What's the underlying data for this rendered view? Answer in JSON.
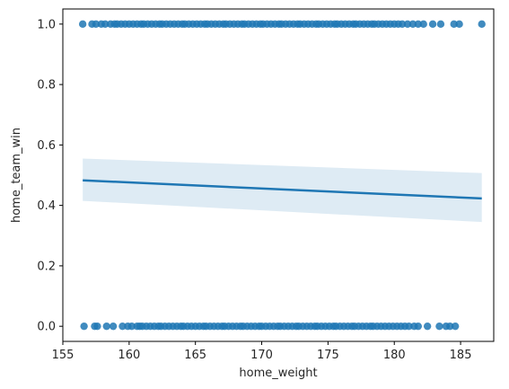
{
  "chart_data": {
    "type": "scatter",
    "title": "",
    "xlabel": "home_weight",
    "ylabel": "home_team_win",
    "xlim": [
      155,
      187.5
    ],
    "ylim": [
      -0.05,
      1.05
    ],
    "xticks": [
      155,
      160,
      165,
      170,
      175,
      180,
      185
    ],
    "yticks": [
      0.0,
      0.2,
      0.4,
      0.6,
      0.8,
      1.0
    ],
    "xtick_labels": [
      "155",
      "160",
      "165",
      "170",
      "175",
      "180",
      "185"
    ],
    "ytick_labels": [
      "0.0",
      "0.2",
      "0.4",
      "0.6",
      "0.8",
      "1.0"
    ],
    "grid": false,
    "point_color": "#1f77b4",
    "points_y1": [
      156.5,
      157.2,
      157.5,
      157.9,
      158.2,
      158.6,
      158.9,
      159.1,
      159.4,
      159.7,
      160.0,
      160.3,
      160.6,
      160.9,
      161.1,
      161.4,
      161.7,
      162.0,
      162.3,
      162.5,
      162.8,
      163.1,
      163.4,
      163.7,
      164.0,
      164.2,
      164.5,
      164.8,
      165.1,
      165.4,
      165.7,
      165.9,
      166.2,
      166.5,
      166.8,
      167.1,
      167.3,
      167.6,
      167.9,
      168.2,
      168.5,
      168.7,
      169.0,
      169.3,
      169.6,
      169.9,
      170.1,
      170.4,
      170.7,
      171.0,
      171.3,
      171.5,
      171.8,
      172.1,
      172.4,
      172.7,
      172.9,
      173.2,
      173.5,
      173.8,
      174.1,
      174.3,
      174.6,
      174.9,
      175.2,
      175.5,
      175.7,
      176.0,
      176.3,
      176.6,
      176.9,
      177.1,
      177.4,
      177.7,
      178.0,
      178.3,
      178.5,
      178.8,
      179.1,
      179.4,
      179.7,
      180.0,
      180.3,
      180.6,
      181.0,
      181.4,
      181.8,
      182.2,
      182.9,
      183.5,
      184.5,
      184.9,
      186.6
    ],
    "points_y0": [
      156.6,
      157.4,
      157.6,
      158.3,
      158.8,
      159.5,
      159.9,
      160.2,
      160.6,
      160.8,
      161.0,
      161.3,
      161.6,
      161.9,
      162.2,
      162.4,
      162.7,
      163.0,
      163.3,
      163.6,
      163.9,
      164.1,
      164.4,
      164.7,
      165.0,
      165.3,
      165.6,
      165.8,
      166.1,
      166.4,
      166.7,
      167.0,
      167.2,
      167.5,
      167.8,
      168.1,
      168.4,
      168.6,
      168.9,
      169.2,
      169.5,
      169.8,
      170.0,
      170.3,
      170.6,
      170.9,
      171.2,
      171.4,
      171.7,
      172.0,
      172.3,
      172.6,
      172.8,
      173.1,
      173.4,
      173.7,
      174.0,
      174.2,
      174.5,
      174.8,
      175.1,
      175.4,
      175.6,
      175.9,
      176.2,
      176.5,
      176.8,
      177.0,
      177.3,
      177.6,
      177.9,
      178.2,
      178.4,
      178.7,
      179.0,
      179.3,
      179.6,
      179.9,
      180.2,
      180.5,
      180.8,
      181.1,
      181.5,
      181.8,
      182.5,
      183.4,
      183.9,
      184.2,
      184.6
    ],
    "regression": {
      "x": [
        156.5,
        186.6
      ],
      "y": [
        0.483,
        0.423
      ],
      "ci_upper": [
        0.555,
        0.507
      ],
      "ci_lower": [
        0.415,
        0.345
      ]
    }
  }
}
